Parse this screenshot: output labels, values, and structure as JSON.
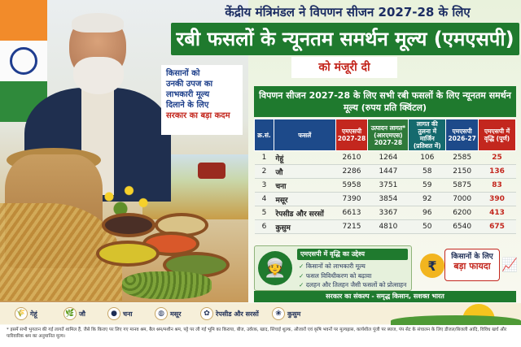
{
  "header": {
    "line1": "केंद्रीय मंत्रिमंडल ने विपणन सीजन 2027-28 के लिए",
    "line2": "रबी फसलों के न्यूनतम समर्थन मूल्य (एमएसपी)",
    "line3": "को मंजूरी दी"
  },
  "callout": [
    "किसानों को",
    "उनकी उपज का",
    "लाभकारी मूल्य",
    "दिलाने के लिए",
    "सरकार का बड़ा कदम"
  ],
  "table": {
    "title": "विपणन सीजन 2027-28 के लिए सभी रबी फसलों के लिए न्यूनतम समर्थन मूल्य (रुपय प्रति क्विंटल)",
    "headers": [
      "क्र.सं.",
      "फसलें",
      "एमएसपी 2027-28",
      "उत्पादन लागत* (आरएमएस) 2027-28",
      "लागत की तुलना में मार्जिन (प्रतिशत में)",
      "एमएसपी 2026-27",
      "एमएसपी में वृद्धि (पूर्ण)"
    ],
    "rows": [
      [
        "1",
        "गेहूं",
        "2610",
        "1264",
        "106",
        "2585",
        "25"
      ],
      [
        "2",
        "जौ",
        "2286",
        "1447",
        "58",
        "2150",
        "136"
      ],
      [
        "3",
        "चना",
        "5958",
        "3751",
        "59",
        "5875",
        "83"
      ],
      [
        "4",
        "मसूर",
        "7390",
        "3854",
        "92",
        "7000",
        "390"
      ],
      [
        "5",
        "रेपसीड और सरसों",
        "6613",
        "3367",
        "96",
        "6200",
        "413"
      ],
      [
        "6",
        "कुसुम",
        "7215",
        "4810",
        "50",
        "6540",
        "675"
      ]
    ]
  },
  "objective": {
    "title": "एमएसपी में वृद्धि का उद्देश्य",
    "items": [
      "किसानों को लाभकारी मूल्य",
      "फसल विविधीकरण को बढ़ावा",
      "दलहन और तिलहन जैसी फसलों को प्रोत्साहन"
    ]
  },
  "benefit": {
    "line1": "किसानों के लिए",
    "line2": "बड़ा फायदा",
    "icon": "rupee-icon"
  },
  "motto": "सरकार का संकल्प - समृद्ध किसान, सशक्त भारत",
  "crops_bar": [
    {
      "label": "गेहूं",
      "icon": "🌾"
    },
    {
      "label": "जौ",
      "icon": "🌿"
    },
    {
      "label": "चना",
      "icon": "●"
    },
    {
      "label": "मसूर",
      "icon": "◍"
    },
    {
      "label": "रेपसीड और सरसों",
      "icon": "✿"
    },
    {
      "label": "कुसुम",
      "icon": "❀"
    }
  ],
  "footnote": "* इसमें सभी भुगतान की गई लागतें शामिल हैं, जैसे कि किराए पर लिए गए मानव श्रम, बैल श्रम/मशीन श्रम, पट्टे पर ली गई भूमि का किराया, बीज, उर्वरक, खाद, सिंचाई शुल्क, औजारों एवं कृषि भवनों पर मूल्यह्रास, कार्यशील पूंजी पर ब्याज, पंप सेट के संचालन के लिए डीजल/बिजली आदि, विविध खर्च और पारिवारिक श्रम का अनुमानित मूल्य।",
  "colors": {
    "green": "#1f7a2e",
    "navy": "#1c2d63",
    "red": "#c3271e"
  }
}
